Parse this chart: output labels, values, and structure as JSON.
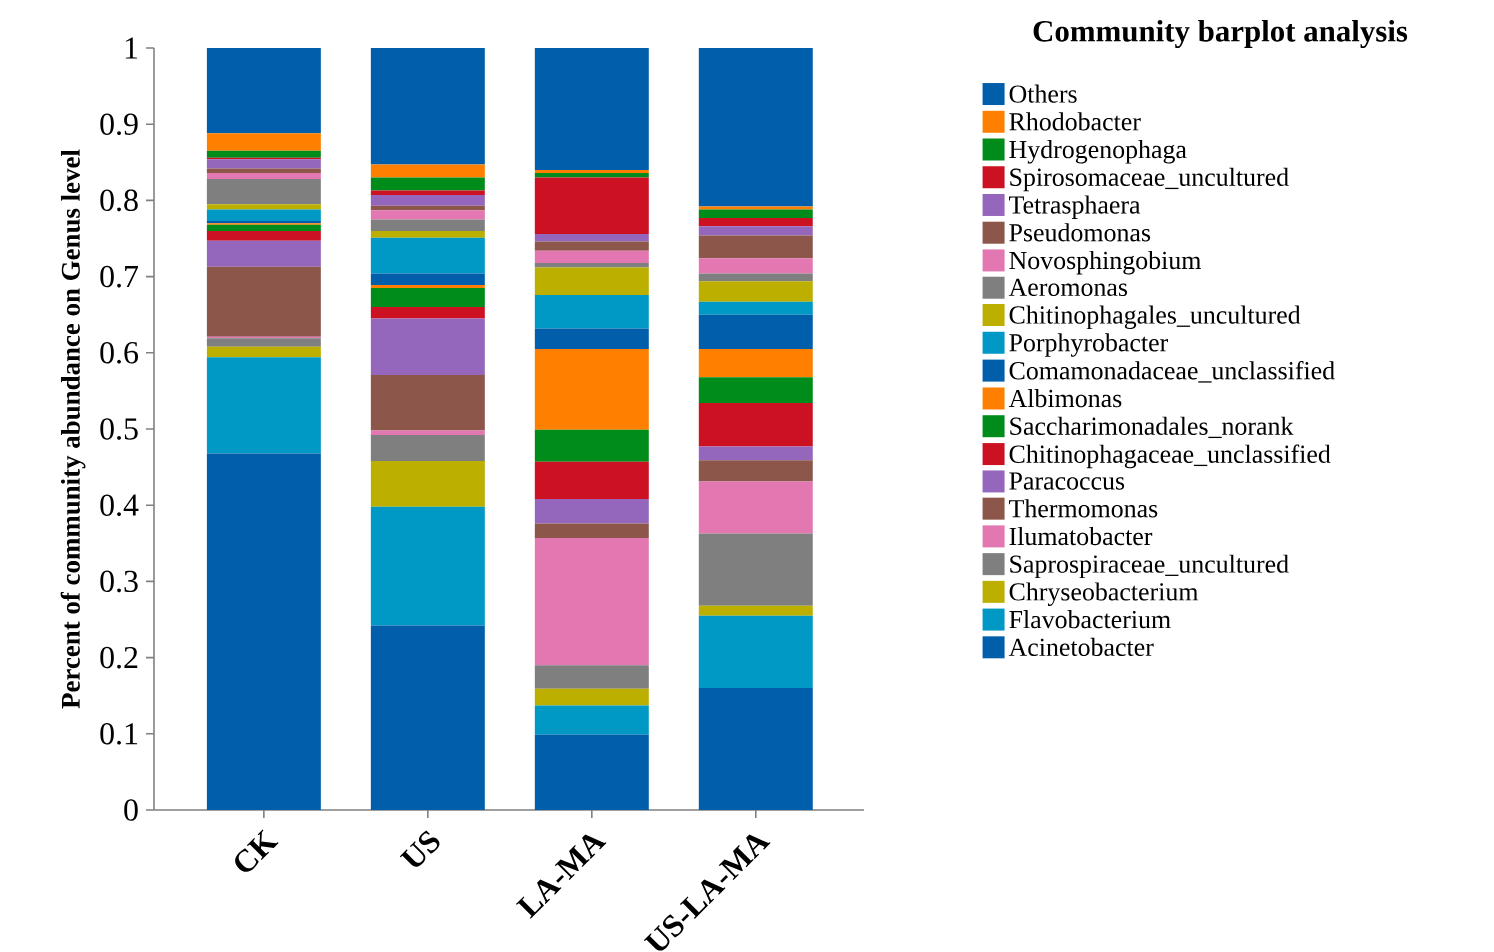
{
  "chart_data": {
    "type": "bar",
    "stacked": true,
    "legend": "right",
    "legend_title": "Community barplot analysis",
    "ylabel": "Percent of community abundance on Genus level",
    "categories": [
      "CK",
      "US",
      "LA-MA",
      "US-LA-MA"
    ],
    "ylim": [
      0,
      1
    ],
    "yticks": [
      0,
      0.1,
      0.2,
      0.3,
      0.4,
      0.5,
      0.6,
      0.7,
      0.8,
      0.9,
      1
    ],
    "series": [
      {
        "name": "Acinetobacter",
        "color": "#005eaa",
        "values": [
          0.468,
          0.242,
          0.099,
          0.16
        ]
      },
      {
        "name": "Flavobacterium",
        "color": "#0099c6",
        "values": [
          0.126,
          0.156,
          0.038,
          0.095
        ]
      },
      {
        "name": "Chryseobacterium",
        "color": "#bcaf00",
        "values": [
          0.014,
          0.06,
          0.022,
          0.013
        ]
      },
      {
        "name": "Saprospiraceae_uncultured",
        "color": "#7f7f7f",
        "values": [
          0.011,
          0.034,
          0.031,
          0.095
        ]
      },
      {
        "name": "Ilumatobacter",
        "color": "#e377b2",
        "values": [
          0.002,
          0.006,
          0.167,
          0.068
        ]
      },
      {
        "name": "Thermomonas",
        "color": "#8c564b",
        "values": [
          0.092,
          0.073,
          0.019,
          0.028
        ]
      },
      {
        "name": "Paracoccus",
        "color": "#9467bd",
        "values": [
          0.034,
          0.074,
          0.032,
          0.018
        ]
      },
      {
        "name": "Chitinophagaceae_unclassified",
        "color": "#cc1122",
        "values": [
          0.013,
          0.015,
          0.049,
          0.057
        ]
      },
      {
        "name": "Saccharimonadales_norank",
        "color": "#008c1a",
        "values": [
          0.008,
          0.025,
          0.042,
          0.034
        ]
      },
      {
        "name": "Albimonas",
        "color": "#ff8000",
        "values": [
          0.002,
          0.004,
          0.106,
          0.037
        ]
      },
      {
        "name": "Comamonadaceae_unclassified",
        "color": "#005eaa",
        "values": [
          0.003,
          0.015,
          0.027,
          0.045
        ]
      },
      {
        "name": "Porphyrobacter",
        "color": "#0099c6",
        "values": [
          0.015,
          0.047,
          0.044,
          0.017
        ]
      },
      {
        "name": "Chitinophagales_uncultured",
        "color": "#bcaf00",
        "values": [
          0.007,
          0.009,
          0.036,
          0.027
        ]
      },
      {
        "name": "Aeromonas",
        "color": "#7f7f7f",
        "values": [
          0.033,
          0.015,
          0.006,
          0.01
        ]
      },
      {
        "name": "Novosphingobium",
        "color": "#e377b2",
        "values": [
          0.008,
          0.012,
          0.016,
          0.02
        ]
      },
      {
        "name": "Pseudomonas",
        "color": "#8c564b",
        "values": [
          0.006,
          0.006,
          0.012,
          0.03
        ]
      },
      {
        "name": "Tetrasphaera",
        "color": "#9467bd",
        "values": [
          0.012,
          0.014,
          0.01,
          0.012
        ]
      },
      {
        "name": "Spirosomaceae_uncultured",
        "color": "#cc1122",
        "values": [
          0.002,
          0.006,
          0.074,
          0.011
        ]
      },
      {
        "name": "Hydrogenophaga",
        "color": "#008c1a",
        "values": [
          0.009,
          0.017,
          0.006,
          0.011
        ]
      },
      {
        "name": "Rhodobacter",
        "color": "#ff8000",
        "values": [
          0.023,
          0.017,
          0.004,
          0.004
        ]
      },
      {
        "name": "Others",
        "color": "#005eaa",
        "values": [
          0.112,
          0.153,
          0.16,
          0.208
        ]
      }
    ]
  }
}
